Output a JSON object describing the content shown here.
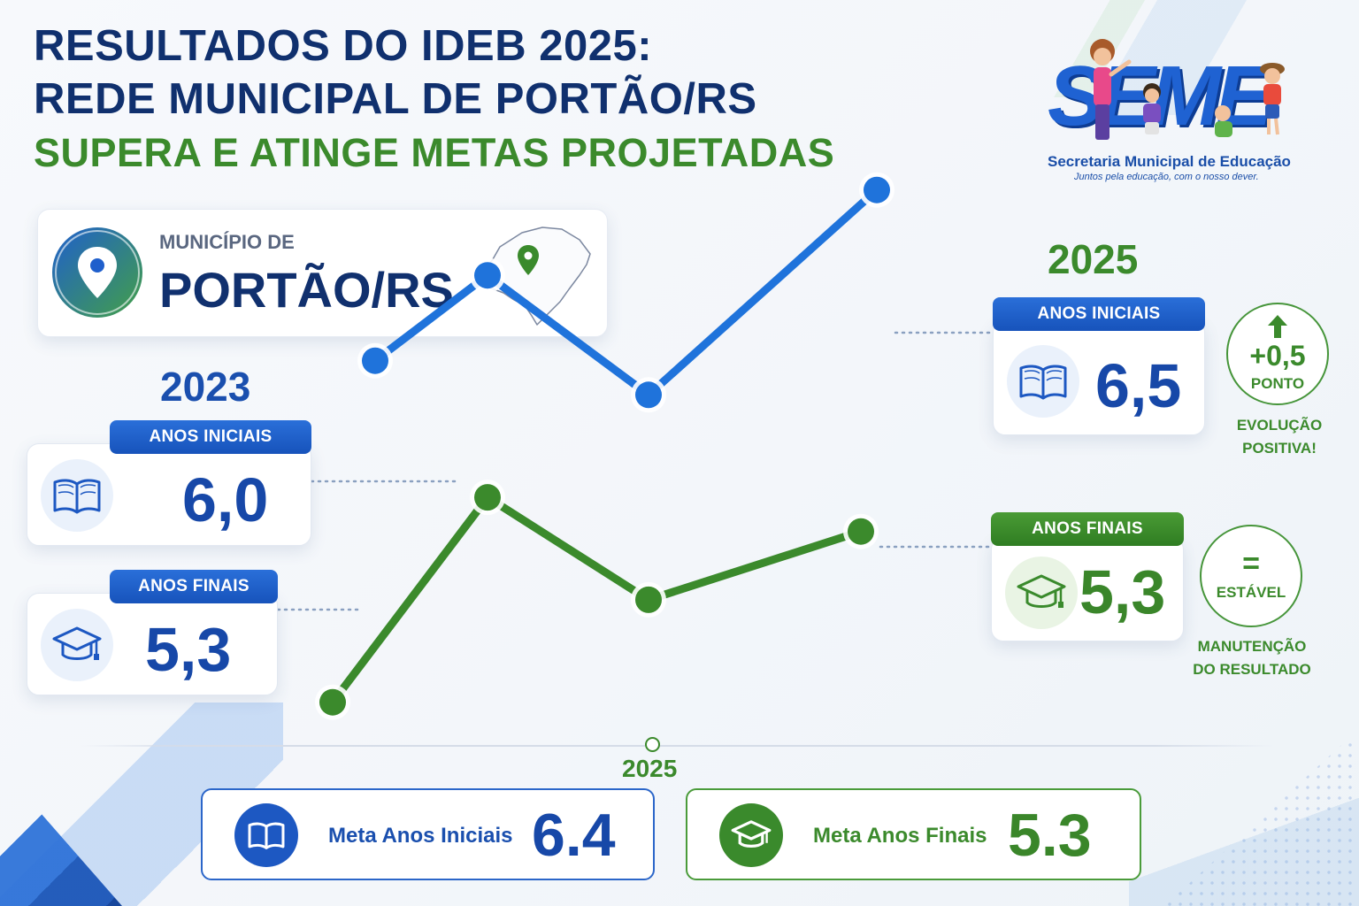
{
  "header": {
    "line1": "RESULTADOS DO IDEB 2025:",
    "line2": "REDE MUNICIPAL DE PORTÃO/RS",
    "line3": "SUPERA E ATINGE METAS PROJETADAS"
  },
  "logo": {
    "wordmark": "SEME",
    "name": "Secretaria Municipal de Educação",
    "motto": "Juntos pela educação, com o nosso dever."
  },
  "municipality": {
    "caption": "MUNICÍPIO DE",
    "name": "PORTÃO/RS",
    "icon": "location-pin-icon"
  },
  "results_2023": {
    "year": "2023",
    "anos_iniciais": {
      "label": "ANOS INICIAIS",
      "value": "6,0",
      "icon": "book-icon"
    },
    "anos_finais": {
      "label": "ANOS FINAIS",
      "value": "5,3",
      "icon": "graduation-cap-icon"
    }
  },
  "results_2025": {
    "year": "2025",
    "anos_iniciais": {
      "label": "ANOS INICIAIS",
      "value": "6,5",
      "icon": "book-icon"
    },
    "anos_finais": {
      "label": "ANOS FINAIS",
      "value": "5,3",
      "icon": "graduation-cap-icon"
    }
  },
  "badges": {
    "increase": {
      "value": "+0,5",
      "unit": "PONTO",
      "caption_1": "EVOLUÇÃO",
      "caption_2": "POSITIVA!",
      "icon": "arrow-up-icon"
    },
    "stable": {
      "symbol": "=",
      "text": "ESTÁVEL",
      "caption_1": "MANUTENÇÃO",
      "caption_2": "DO RESULTADO"
    }
  },
  "goals": {
    "year": "2025",
    "anos_iniciais": {
      "label": "Meta Anos Iniciais",
      "value": "6.4",
      "icon": "book-icon"
    },
    "anos_finais": {
      "label": "Meta Anos Finais",
      "value": "5.3",
      "icon": "graduation-cap-icon"
    }
  },
  "colors": {
    "navy": "#10306e",
    "blue": "#1f73db",
    "green": "#3b8a2c"
  },
  "chart_data": {
    "type": "line",
    "series": [
      {
        "name": "ANOS INICIAIS",
        "color": "#1f73db",
        "values": [
          6.0,
          6.25,
          5.9,
          6.5
        ]
      },
      {
        "name": "ANOS FINAIS",
        "color": "#3b8a2c",
        "values": [
          5.0,
          5.6,
          5.3,
          5.5
        ]
      }
    ]
  }
}
